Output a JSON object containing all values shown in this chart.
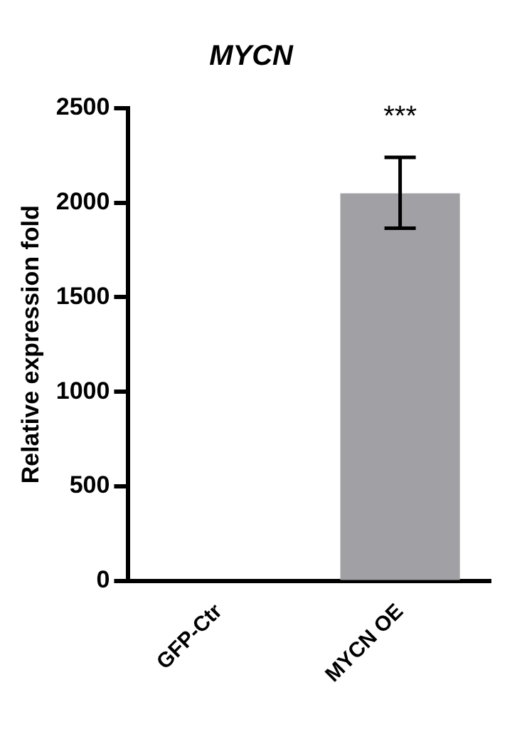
{
  "chart_data": {
    "type": "bar",
    "title": "MYCN",
    "ylabel": "Relative expression fold",
    "categories": [
      "GFP-Ctr",
      "MYCN OE"
    ],
    "series": [
      {
        "color": "#a1a0a5",
        "values": [
          null,
          2050
        ],
        "errors": [
          null,
          [
            1865,
            2240
          ]
        ]
      }
    ],
    "ylim": [
      0,
      2500
    ],
    "yticks": [
      0,
      500,
      1000,
      1500,
      2000,
      2500
    ],
    "grid": false,
    "annotations": [
      "***"
    ]
  }
}
